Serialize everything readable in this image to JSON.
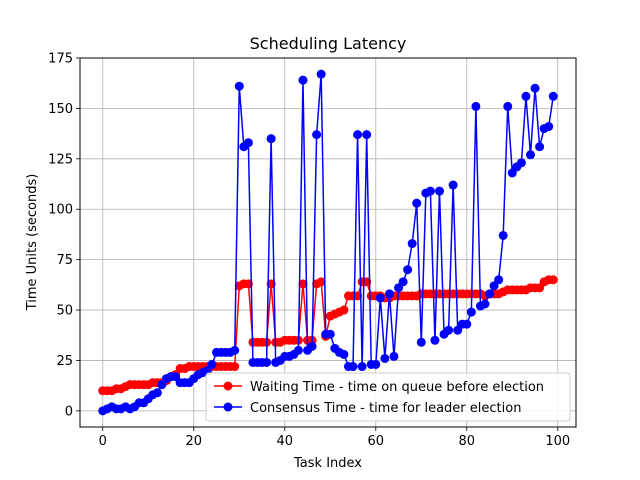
{
  "chart_data": {
    "type": "line",
    "title": "Scheduling Latency",
    "xlabel": "Task Index",
    "ylabel": "Time Units (seconds)",
    "xlim": [
      -5,
      104
    ],
    "ylim": [
      -8,
      175
    ],
    "xticks": [
      0,
      20,
      40,
      60,
      80,
      100
    ],
    "yticks": [
      0,
      25,
      50,
      75,
      100,
      125,
      150,
      175
    ],
    "grid": true,
    "legend_position": "lower-right",
    "x": [
      0,
      1,
      2,
      3,
      4,
      5,
      6,
      7,
      8,
      9,
      10,
      11,
      12,
      13,
      14,
      15,
      16,
      17,
      18,
      19,
      20,
      21,
      22,
      23,
      24,
      25,
      26,
      27,
      28,
      29,
      30,
      31,
      32,
      33,
      34,
      35,
      36,
      37,
      38,
      39,
      40,
      41,
      42,
      43,
      44,
      45,
      46,
      47,
      48,
      49,
      50,
      51,
      52,
      53,
      54,
      55,
      56,
      57,
      58,
      59,
      60,
      61,
      62,
      63,
      64,
      65,
      66,
      67,
      68,
      69,
      70,
      71,
      72,
      73,
      74,
      75,
      76,
      77,
      78,
      79,
      80,
      81,
      82,
      83,
      84,
      85,
      86,
      87,
      88,
      89,
      90,
      91,
      92,
      93,
      94,
      95,
      96,
      97,
      98,
      99
    ],
    "series": [
      {
        "name": "Waiting Time - time on queue before election",
        "color": "#ff0000",
        "values": [
          10,
          10,
          10,
          11,
          11,
          12,
          13,
          13,
          13,
          13,
          13,
          14,
          14,
          14,
          15,
          17,
          18,
          21,
          21,
          22,
          22,
          22,
          22,
          22,
          22,
          22,
          22,
          22,
          22,
          22,
          62,
          63,
          63,
          34,
          34,
          34,
          34,
          63,
          34,
          34,
          35,
          35,
          35,
          35,
          63,
          35,
          35,
          63,
          64,
          37,
          47,
          48,
          49,
          50,
          57,
          57,
          57,
          64,
          64,
          57,
          57,
          57,
          56,
          56,
          57,
          57,
          57,
          57,
          57,
          57,
          58,
          58,
          58,
          58,
          58,
          58,
          58,
          58,
          58,
          58,
          58,
          58,
          58,
          58,
          57,
          58,
          58,
          58,
          59,
          60,
          60,
          60,
          60,
          60,
          61,
          61,
          61,
          64,
          65,
          65
        ]
      },
      {
        "name": "Consensus Time - time for leader election",
        "color": "#0000ff",
        "values": [
          0,
          1,
          2,
          1,
          1,
          2,
          1,
          2,
          4,
          4,
          6,
          8,
          9,
          13,
          16,
          17,
          17,
          14,
          14,
          14,
          16,
          18,
          19,
          20,
          23,
          29,
          29,
          29,
          29,
          30,
          161,
          131,
          133,
          24,
          24,
          24,
          24,
          135,
          24,
          25,
          27,
          27,
          28,
          30,
          164,
          30,
          32,
          137,
          167,
          38,
          38,
          31,
          29,
          28,
          22,
          22,
          137,
          22,
          137,
          23,
          23,
          56,
          26,
          58,
          27,
          61,
          64,
          70,
          83,
          103,
          34,
          108,
          109,
          35,
          109,
          38,
          40,
          112,
          40,
          43,
          43,
          49,
          151,
          52,
          53,
          58,
          62,
          65,
          87,
          151,
          118,
          121,
          123,
          156,
          127,
          160,
          131,
          140,
          141,
          156
        ]
      }
    ]
  }
}
